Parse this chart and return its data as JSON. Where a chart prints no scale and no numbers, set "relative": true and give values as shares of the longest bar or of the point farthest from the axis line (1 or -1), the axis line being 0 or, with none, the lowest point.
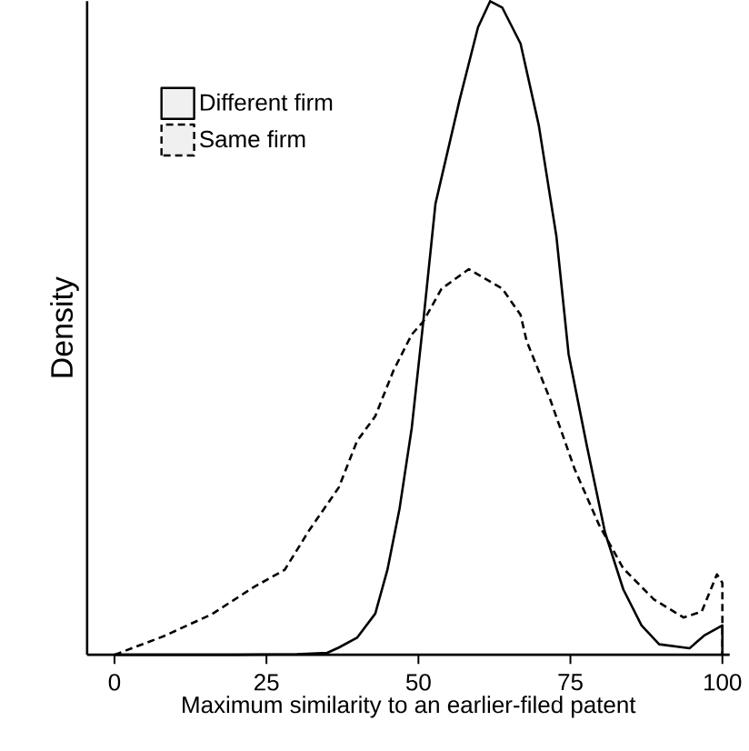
{
  "chart_data": {
    "type": "line",
    "relative": true,
    "xlabel": "Maximum similarity to an earlier-filed patent",
    "ylabel": "Density",
    "xlim": [
      -4.5,
      101.2
    ],
    "xticks": [
      0,
      25,
      50,
      75,
      100
    ],
    "legend": "top left",
    "tick_labels": "x",
    "series": [
      {
        "name": "Different firm",
        "color": "#000000",
        "line_style": "solid",
        "x": [
          0,
          10,
          20,
          30,
          35,
          36.9,
          39.9,
          42.9,
          44.9,
          46.9,
          48.9,
          50.8,
          52.8,
          56.8,
          59.8,
          61.8,
          63.8,
          66.8,
          69.8,
          72.7,
          74.7,
          77.7,
          80.7,
          83.7,
          86.7,
          89.6,
          94.6,
          97.1,
          100,
          100
        ],
        "values": [
          0,
          0,
          0,
          0.001,
          0.003,
          0.011,
          0.026,
          0.063,
          0.13,
          0.224,
          0.347,
          0.51,
          0.69,
          0.85,
          0.96,
          1.0,
          0.99,
          0.935,
          0.81,
          0.64,
          0.46,
          0.32,
          0.187,
          0.1,
          0.045,
          0.016,
          0.01,
          0.03,
          0.045,
          0
        ]
      },
      {
        "name": "Same firm",
        "color": "#000000",
        "line_style": "dashed",
        "x": [
          0,
          8,
          16,
          23,
          28,
          32,
          36.9,
          39.9,
          42.9,
          45.9,
          48.9,
          50.8,
          53.8,
          58.3,
          63.8,
          66.8,
          67.8,
          71.7,
          75.7,
          79.7,
          83.7,
          88.7,
          93.6,
          96.6,
          99.1,
          100,
          100
        ],
        "values": [
          0,
          0.028,
          0.062,
          0.104,
          0.13,
          0.19,
          0.256,
          0.327,
          0.365,
          0.435,
          0.49,
          0.51,
          0.56,
          0.59,
          0.56,
          0.52,
          0.48,
          0.39,
          0.284,
          0.199,
          0.132,
          0.085,
          0.057,
          0.066,
          0.123,
          0.11,
          0
        ]
      }
    ]
  }
}
